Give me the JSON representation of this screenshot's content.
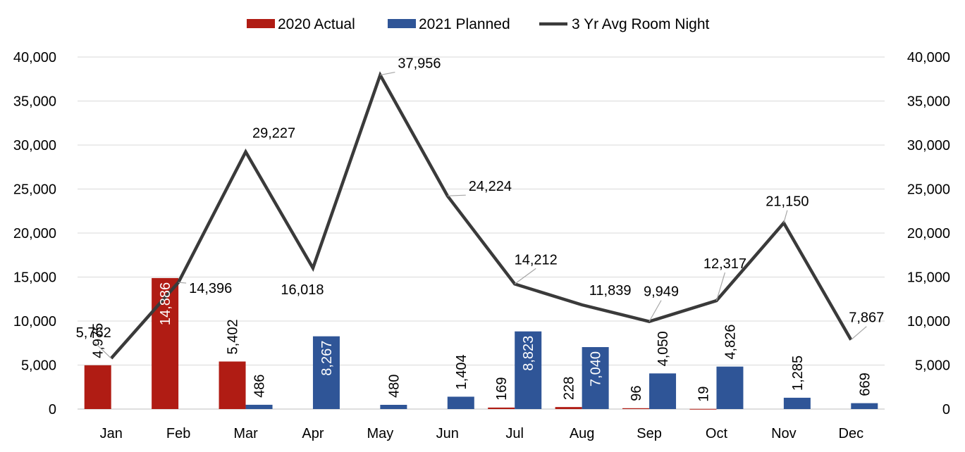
{
  "chart_data": {
    "type": "bar",
    "categories": [
      "Jan",
      "Feb",
      "Mar",
      "Apr",
      "May",
      "Jun",
      "Jul",
      "Aug",
      "Sep",
      "Oct",
      "Nov",
      "Dec"
    ],
    "series": [
      {
        "name": "2020 Actual",
        "type": "bar",
        "color": "#b01c14",
        "values": [
          4975,
          14886,
          5402,
          0,
          0,
          0,
          169,
          228,
          96,
          19,
          0,
          0
        ],
        "labels": [
          "4,975",
          "14,886",
          "5,402",
          null,
          null,
          null,
          "169",
          "228",
          "96",
          "19",
          null,
          null
        ]
      },
      {
        "name": "2021 Planned",
        "type": "bar",
        "color": "#2f5597",
        "values": [
          0,
          0,
          486,
          8267,
          480,
          1404,
          8823,
          7040,
          4050,
          4826,
          1285,
          669
        ],
        "labels": [
          null,
          null,
          "486",
          "8,267",
          "480",
          "1,404",
          "8,823",
          "7,040",
          "4,050",
          "4,826",
          "1,285",
          "669"
        ]
      },
      {
        "name": "3 Yr Avg Room Night",
        "type": "line",
        "color": "#3a3a3a",
        "values": [
          5762,
          14396,
          29227,
          16018,
          37956,
          24224,
          14212,
          11839,
          9949,
          12317,
          21150,
          7867
        ],
        "labels": [
          "5,762",
          "14,396",
          "29,227",
          "16,018",
          "37,956",
          "24,224",
          "14,212",
          "11,839",
          "9,949",
          "12,317",
          "21,150",
          "7,867"
        ]
      }
    ],
    "ylim": [
      0,
      40000
    ],
    "yticks": [
      "0",
      "5,000",
      "10,000",
      "15,000",
      "20,000",
      "25,000",
      "30,000",
      "35,000",
      "40,000"
    ],
    "y2ticks": [
      "0",
      "5,000",
      "10,000",
      "15,000",
      "20,000",
      "25,000",
      "30,000",
      "35,000",
      "40,000"
    ],
    "grid": true,
    "legend_position": "top-center",
    "title": "",
    "xlabel": "",
    "ylabel": ""
  }
}
